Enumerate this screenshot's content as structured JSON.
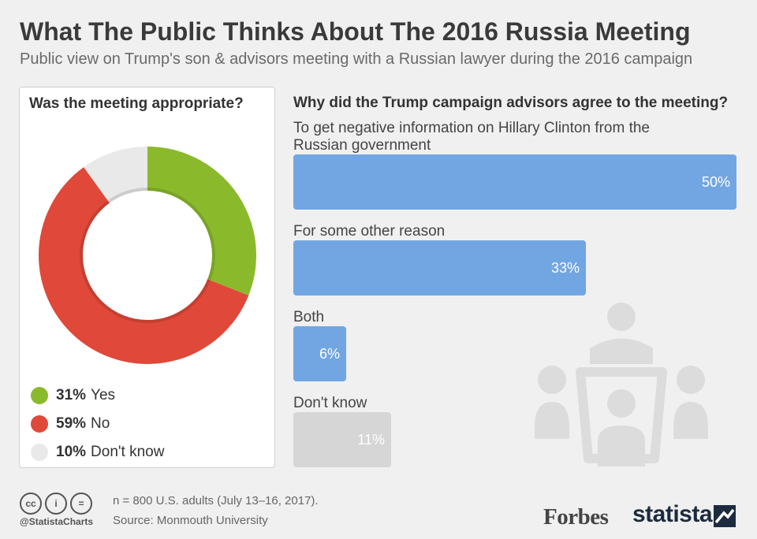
{
  "header": {
    "title": "What The Public Thinks About The 2016 Russia Meeting",
    "subtitle": "Public view on Trump's son & advisors meeting with a Russian lawyer during the 2016 campaign"
  },
  "chart_data": [
    {
      "type": "pie",
      "title": "Was the meeting appropriate?",
      "categories": [
        "Yes",
        "No",
        "Don't know"
      ],
      "values": [
        31,
        59,
        10
      ],
      "labels": [
        "31%",
        "59%",
        "10%"
      ],
      "colors": [
        "#8aba2c",
        "#e0483a",
        "#e9e9e9"
      ],
      "legend_placement": "bottom"
    },
    {
      "type": "bar",
      "title": "Why did the Trump campaign advisors agree to the meeting?",
      "categories": [
        "To get negative information on Hillary Clinton from the Russian government",
        "For some other reason",
        "Both",
        "Don't know"
      ],
      "values": [
        50,
        33,
        6,
        11
      ],
      "labels": [
        "50%",
        "33%",
        "6%",
        "11%"
      ],
      "colors": [
        "#72a6e3",
        "#72a6e3",
        "#72a6e3",
        "#d6d6d6"
      ],
      "xlim": [
        0,
        50
      ]
    }
  ],
  "footer": {
    "handle": "@StatistaCharts",
    "note": "n = 800 U.S. adults (July 13–16, 2017).",
    "source": "Source: Monmouth University",
    "brand_forbes": "Forbes",
    "brand_statista": "statista",
    "cc_icons": [
      "cc-icon",
      "by-icon",
      "nd-icon"
    ],
    "cc_glyphs": [
      "cc",
      "i",
      "="
    ]
  }
}
